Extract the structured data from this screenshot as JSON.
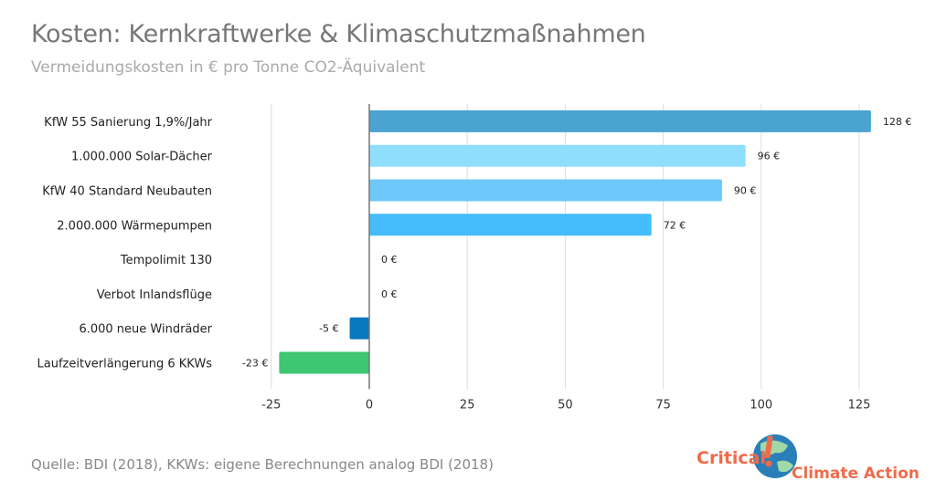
{
  "title": "Kosten: Kernkraftwerke & Klimaschutzmaßnahmen",
  "subtitle": "Vermeidungskosten in € pro Tonne CO2-Äquivalent",
  "source": "Quelle: BDI (2018), KKWs: eigene Berechnungen analog BDI (2018)",
  "logo": {
    "text1": "Critical",
    "text2": "Climate Action"
  },
  "chart_data": {
    "type": "bar",
    "orientation": "horizontal",
    "categories": [
      "KfW 55 Sanierung 1,9%/Jahr",
      "1.000.000 Solar-Dächer",
      "KfW 40 Standard Neubauten",
      "2.000.000 Wärmepumpen",
      "Tempolimit 130",
      "Verbot Inlandsflüge",
      "6.000 neue Windräder",
      "Laufzeitverlängerung 6 KKWs"
    ],
    "values": [
      128,
      96,
      90,
      72,
      0,
      0,
      -5,
      -23
    ],
    "data_labels": [
      "128 €",
      "96 €",
      "90 €",
      "72 €",
      "0 €",
      "0 €",
      "-5 €",
      "-23 €"
    ],
    "colors": [
      "#4aa3d0",
      "#8fdefd",
      "#6ec8f9",
      "#45bdfc",
      "#45bdfc",
      "#45bdfc",
      "#0a78be",
      "#3ec672"
    ],
    "xlim": [
      -25,
      130
    ],
    "xticks": [
      -25,
      0,
      25,
      50,
      75,
      100,
      125
    ],
    "grid": true
  }
}
